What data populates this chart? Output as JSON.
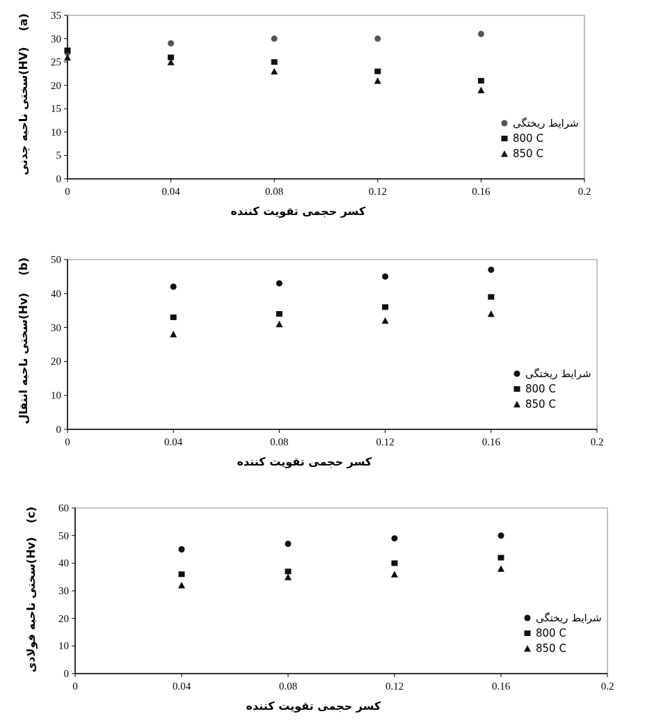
{
  "chart_data": [
    {
      "type": "scatter",
      "title": "(a)",
      "xlabel": "کسر حجمی تقویت کننده",
      "ylabel": "سختی ناحیه چدنی(HV)",
      "x": [
        0,
        0.04,
        0.08,
        0.12,
        0.16
      ],
      "xlim": [
        0,
        0.2
      ],
      "xticks": [
        0,
        0.04,
        0.08,
        0.12,
        0.16,
        0.2
      ],
      "ylim": [
        0,
        35
      ],
      "yticks": [
        0,
        5,
        10,
        15,
        20,
        25,
        30,
        35
      ],
      "legend": "right",
      "grid": false,
      "series": [
        {
          "name": "شرایط ریختگی",
          "color": "#555555",
          "marker": "circle",
          "values": [
            27,
            29,
            30,
            30,
            31
          ]
        },
        {
          "name": "800 C",
          "color": "#111111",
          "marker": "square",
          "values": [
            27.5,
            26,
            25,
            23,
            21
          ]
        },
        {
          "name": "850 C",
          "color": "#111111",
          "marker": "triangle",
          "values": [
            26,
            25,
            23,
            21,
            19
          ]
        }
      ]
    },
    {
      "type": "scatter",
      "title": "(b)",
      "xlabel": "کسر حجمی تقویت کننده",
      "ylabel": "سختی ناحیه انتقال(Hv)",
      "x": [
        0.04,
        0.08,
        0.12,
        0.16
      ],
      "xlim": [
        0,
        0.2
      ],
      "xticks": [
        0,
        0.04,
        0.08,
        0.12,
        0.16,
        0.2
      ],
      "ylim": [
        0,
        50
      ],
      "yticks": [
        0,
        10,
        20,
        30,
        40,
        50
      ],
      "legend": "right",
      "grid": false,
      "series": [
        {
          "name": "شرایط ریختگی",
          "color": "#111111",
          "marker": "circle",
          "values": [
            42,
            43,
            45,
            47
          ]
        },
        {
          "name": "800 C",
          "color": "#111111",
          "marker": "square",
          "values": [
            33,
            34,
            36,
            39
          ]
        },
        {
          "name": "850 C",
          "color": "#111111",
          "marker": "triangle",
          "values": [
            28,
            31,
            32,
            34
          ]
        }
      ]
    },
    {
      "type": "scatter",
      "title": "(c)",
      "xlabel": "کسر حجمی تقویت کننده",
      "ylabel": "سختی ناحیه فولادی(Hv)",
      "x": [
        0.04,
        0.08,
        0.12,
        0.16
      ],
      "xlim": [
        0,
        0.2
      ],
      "xticks": [
        0,
        0.04,
        0.08,
        0.12,
        0.16,
        0.2
      ],
      "ylim": [
        0,
        60
      ],
      "yticks": [
        0,
        10,
        20,
        30,
        40,
        50,
        60
      ],
      "legend": "right",
      "grid": false,
      "series": [
        {
          "name": "شرایط ریختگی",
          "color": "#111111",
          "marker": "circle",
          "values": [
            45,
            47,
            49,
            50
          ]
        },
        {
          "name": "800 C",
          "color": "#111111",
          "marker": "square",
          "values": [
            36,
            37,
            40,
            42
          ]
        },
        {
          "name": "850 C",
          "color": "#111111",
          "marker": "triangle",
          "values": [
            32,
            35,
            36,
            38
          ]
        }
      ]
    }
  ]
}
